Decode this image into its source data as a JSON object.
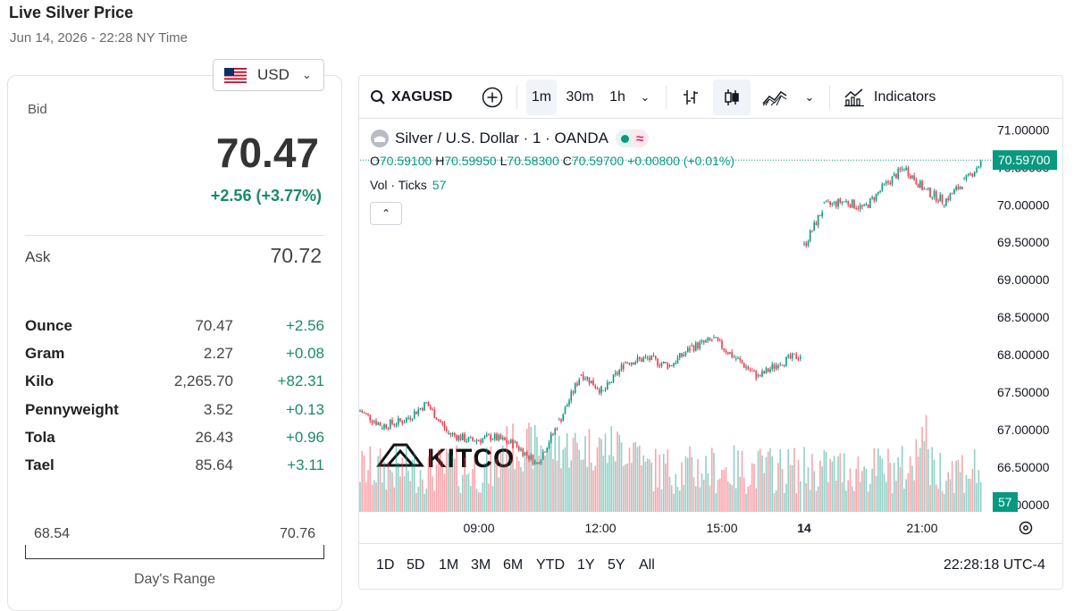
{
  "header": {
    "title": "Live Silver Price",
    "subtitle": "Jun 14, 2026 - 22:28 NY Time"
  },
  "currency": {
    "code": "USD",
    "flag_icon": "us-flag-icon"
  },
  "quote": {
    "bid_label": "Bid",
    "bid": "70.47",
    "change": "+2.56 (+3.77%)",
    "ask_label": "Ask",
    "ask": "70.72"
  },
  "units": [
    {
      "unit": "Ounce",
      "value": "70.47",
      "change": "+2.56"
    },
    {
      "unit": "Gram",
      "value": "2.27",
      "change": "+0.08"
    },
    {
      "unit": "Kilo",
      "value": "2,265.70",
      "change": "+82.31"
    },
    {
      "unit": "Pennyweight",
      "value": "3.52",
      "change": "+0.13"
    },
    {
      "unit": "Tola",
      "value": "26.43",
      "change": "+0.96"
    },
    {
      "unit": "Tael",
      "value": "85.64",
      "change": "+3.11"
    }
  ],
  "day_range": {
    "low": "68.54",
    "high": "70.76",
    "label": "Day's Range"
  },
  "chart": {
    "symbol": "XAGUSD",
    "intervals": [
      "1m",
      "30m",
      "1h"
    ],
    "active_interval": "1m",
    "indicators_label": "Indicators",
    "legend_title": "Silver / U.S. Dollar · 1 · OANDA",
    "ohlc": {
      "o_label": "O",
      "o": "70.59100",
      "h_label": "H",
      "h": "70.59950",
      "l_label": "L",
      "l": "70.58300",
      "c_label": "C",
      "c": "70.59700",
      "chg": "+0.00800 (+0.01%)"
    },
    "vol_label": "Vol · Ticks",
    "vol_value": "57",
    "last_price_tag": "70.59700",
    "volume_tag": "57",
    "watermark": "KITCO",
    "ranges": [
      "1D",
      "5D",
      "1M",
      "3M",
      "6M",
      "YTD",
      "1Y",
      "5Y",
      "All"
    ],
    "clock": "22:28:18 UTC-4",
    "colors": {
      "up": "#089981",
      "down": "#f23645"
    }
  },
  "chart_data": {
    "type": "line",
    "title": "Silver / U.S. Dollar · 1 · OANDA",
    "xlabel": "",
    "ylabel": "",
    "x_ticks": [
      "09:00",
      "12:00",
      "15:00",
      "14",
      "21:00"
    ],
    "y_ticks": [
      "71.00000",
      "70.50000",
      "70.00000",
      "69.50000",
      "69.00000",
      "68.50000",
      "68.00000",
      "67.50000",
      "67.00000",
      "66.50000",
      "66.00000"
    ],
    "ylim": [
      65.95,
      71.1
    ],
    "x": [
      "06:30",
      "07:00",
      "07:30",
      "08:00",
      "08:30",
      "09:00",
      "09:30",
      "10:00",
      "10:30",
      "11:00",
      "11:30",
      "12:00",
      "12:30",
      "13:00",
      "13:30",
      "14:00",
      "14:30",
      "15:00",
      "15:30",
      "16:00",
      "16:30",
      "17:00",
      "17:30",
      "18:00",
      "18:30",
      "19:00",
      "19:30",
      "20:00",
      "20:30",
      "21:00",
      "21:30",
      "22:00",
      "22:28"
    ],
    "series": [
      {
        "values": [
          67.25,
          67.05,
          67.12,
          67.35,
          66.95,
          66.85,
          66.9,
          66.8,
          66.55,
          67.1,
          67.75,
          67.5,
          67.9,
          67.95,
          67.85,
          68.1,
          68.2,
          67.95,
          67.7,
          67.9,
          68.0,
          null,
          null,
          69.45,
          69.98,
          70.05,
          69.95,
          70.25,
          70.5,
          70.2,
          70.05,
          70.3,
          70.597
        ]
      }
    ],
    "grid": false,
    "legend": "top-left"
  }
}
